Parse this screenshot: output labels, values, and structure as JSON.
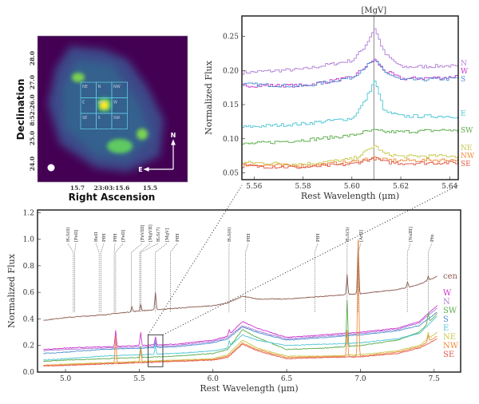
{
  "image_panel": {
    "xlabel": "Right Ascension",
    "ylabel": "Declination",
    "xticks": [
      "15.7",
      "23:03:15.6",
      "15.5"
    ],
    "yticks": [
      "28.0",
      "27.0",
      "8:52:26.0",
      "25.0",
      "24.0"
    ],
    "regions": [
      [
        "NE",
        "N",
        "NW"
      ],
      [
        "E",
        "cen",
        "W"
      ],
      [
        "SE",
        "S",
        "SW"
      ]
    ],
    "compass": {
      "north": "N",
      "east": "E"
    },
    "box_color": "#5ec8e0",
    "colormap": "viridis"
  },
  "chart_data": [
    {
      "type": "line",
      "title": "[MgV]",
      "xlabel": "Rest Wavelength (μm)",
      "ylabel": "Normalized Flux",
      "xlim": [
        5.555,
        5.6435
      ],
      "ylim": [
        0.04,
        0.28
      ],
      "xticks": [
        "5.56",
        "5.58",
        "5.60",
        "5.62",
        "5.64"
      ],
      "yticks": [
        "0.05",
        "0.10",
        "0.15",
        "0.20",
        "0.25"
      ],
      "marker_line": 5.609,
      "x": [
        5.555,
        5.58,
        5.6,
        5.605,
        5.609,
        5.613,
        5.62,
        5.64,
        5.6435
      ],
      "series": [
        {
          "name": "N",
          "color": "#b07fd6",
          "values": [
            0.197,
            0.202,
            0.215,
            0.235,
            0.262,
            0.225,
            0.205,
            0.207,
            0.204
          ]
        },
        {
          "name": "W",
          "color": "#cc33cc",
          "values": [
            0.178,
            0.178,
            0.19,
            0.205,
            0.216,
            0.2,
            0.188,
            0.19,
            0.193
          ]
        },
        {
          "name": "S",
          "color": "#4f8fd0",
          "values": [
            0.18,
            0.177,
            0.19,
            0.205,
            0.215,
            0.198,
            0.186,
            0.188,
            0.189
          ]
        },
        {
          "name": "E",
          "color": "#4fc6d6",
          "values": [
            0.117,
            0.122,
            0.13,
            0.155,
            0.185,
            0.14,
            0.133,
            0.133,
            0.132
          ]
        },
        {
          "name": "SW",
          "color": "#5aad4a",
          "values": [
            0.092,
            0.098,
            0.105,
            0.11,
            0.112,
            0.11,
            0.11,
            0.113,
            0.11
          ]
        },
        {
          "name": "NE",
          "color": "#c8c850",
          "values": [
            0.065,
            0.063,
            0.07,
            0.08,
            0.09,
            0.078,
            0.074,
            0.075,
            0.074
          ]
        },
        {
          "name": "NW",
          "color": "#f08a3c",
          "values": [
            0.062,
            0.06,
            0.066,
            0.07,
            0.072,
            0.069,
            0.068,
            0.069,
            0.069
          ]
        },
        {
          "name": "SE",
          "color": "#e05a4a",
          "values": [
            0.06,
            0.058,
            0.063,
            0.068,
            0.071,
            0.066,
            0.064,
            0.065,
            0.065
          ]
        }
      ]
    },
    {
      "type": "line",
      "xlabel": "Rest Wavelength (μm)",
      "ylabel": "Normalized Flux",
      "xlim": [
        4.81,
        7.68
      ],
      "ylim": [
        0,
        1.22
      ],
      "xticks": [
        "5.0",
        "5.5",
        "6.0",
        "6.5",
        "7.0",
        "7.5"
      ],
      "yticks": [
        "0.0",
        "0.2",
        "0.4",
        "0.6",
        "0.8",
        "1.0",
        "1.2"
      ],
      "zoom_box": {
        "xlim": [
          5.56,
          5.66
        ],
        "ylim": [
          0.04,
          0.28
        ]
      },
      "line_ids": [
        [
          "H₂S(8)",
          5.053
        ],
        [
          "[FeII]",
          5.062
        ],
        [
          "HeII",
          5.228
        ],
        [
          "PfH",
          5.24
        ],
        [
          "PfH",
          5.33
        ],
        [
          "[FeII]",
          5.34
        ],
        [
          "[FeVIII]",
          5.447
        ],
        [
          "[MgVII]",
          5.503
        ],
        [
          "H₂S(7)",
          5.511
        ],
        [
          "[MgV]",
          5.609
        ],
        [
          "PfH",
          5.711
        ],
        [
          "H₂S(6)",
          6.109
        ],
        [
          "PfH",
          6.22
        ],
        [
          "PfH",
          6.69
        ],
        [
          "H₂S(5)",
          6.91
        ],
        [
          "[ArII]",
          6.985
        ],
        [
          "[NaIII]",
          7.318
        ],
        [
          "Pfα",
          7.46
        ]
      ],
      "x": [
        4.85,
        5.0,
        5.25,
        5.5,
        5.75,
        6.0,
        6.1,
        6.2,
        6.3,
        6.5,
        6.75,
        7.0,
        7.25,
        7.4,
        7.52
      ],
      "series": [
        {
          "name": "cen",
          "color": "#8c5a50",
          "values": [
            0.39,
            0.41,
            0.43,
            0.46,
            0.48,
            0.5,
            0.52,
            0.57,
            0.55,
            0.55,
            0.57,
            0.59,
            0.62,
            0.66,
            0.72
          ],
          "lines": [
            [
              5.45,
              0.04
            ],
            [
              5.51,
              0.05
            ],
            [
              5.61,
              0.13
            ],
            [
              6.91,
              0.15
            ],
            [
              6.985,
              0.4
            ],
            [
              7.32,
              0.04
            ],
            [
              7.46,
              0.03
            ]
          ]
        },
        {
          "name": "W",
          "color": "#cc33cc",
          "values": [
            0.17,
            0.18,
            0.19,
            0.2,
            0.21,
            0.24,
            0.27,
            0.38,
            0.33,
            0.26,
            0.28,
            0.3,
            0.33,
            0.38,
            0.5
          ],
          "lines": [
            [
              5.34,
              0.12
            ],
            [
              5.51,
              0.1
            ],
            [
              5.61,
              0.06
            ],
            [
              6.11,
              0.04
            ]
          ]
        },
        {
          "name": "N",
          "color": "#b07fd6",
          "values": [
            0.16,
            0.17,
            0.18,
            0.19,
            0.2,
            0.23,
            0.26,
            0.35,
            0.31,
            0.25,
            0.27,
            0.29,
            0.32,
            0.37,
            0.48
          ],
          "lines": [
            [
              5.61,
              0.05
            ]
          ]
        },
        {
          "name": "SW",
          "color": "#5aad4a",
          "values": [
            0.08,
            0.09,
            0.1,
            0.11,
            0.12,
            0.14,
            0.17,
            0.32,
            0.26,
            0.17,
            0.18,
            0.2,
            0.24,
            0.3,
            0.44
          ],
          "lines": [
            [
              5.51,
              0.08
            ],
            [
              6.91,
              0.35
            ],
            [
              7.46,
              0.08
            ]
          ]
        },
        {
          "name": "S",
          "color": "#4f8fd0",
          "values": [
            0.14,
            0.15,
            0.17,
            0.18,
            0.19,
            0.22,
            0.25,
            0.34,
            0.3,
            0.24,
            0.26,
            0.28,
            0.31,
            0.35,
            0.45
          ],
          "lines": [
            [
              5.61,
              0.04
            ]
          ]
        },
        {
          "name": "E",
          "color": "#4fc6d6",
          "values": [
            0.09,
            0.1,
            0.12,
            0.13,
            0.14,
            0.16,
            0.18,
            0.28,
            0.24,
            0.2,
            0.21,
            0.22,
            0.25,
            0.29,
            0.42
          ],
          "lines": [
            [
              5.61,
              0.07
            ],
            [
              6.11,
              0.05
            ]
          ]
        },
        {
          "name": "NE",
          "color": "#c8c850",
          "values": [
            0.05,
            0.06,
            0.07,
            0.08,
            0.09,
            0.1,
            0.13,
            0.24,
            0.18,
            0.12,
            0.12,
            0.13,
            0.16,
            0.2,
            0.3
          ],
          "lines": [
            [
              7.46,
              0.05
            ]
          ]
        },
        {
          "name": "NW",
          "color": "#f08a3c",
          "values": [
            0.05,
            0.055,
            0.065,
            0.075,
            0.085,
            0.095,
            0.12,
            0.22,
            0.17,
            0.11,
            0.115,
            0.12,
            0.15,
            0.19,
            0.27
          ],
          "lines": [
            [
              5.34,
              0.2
            ],
            [
              5.51,
              0.1
            ],
            [
              6.985,
              0.88
            ],
            [
              6.91,
              0.2
            ],
            [
              7.46,
              0.05
            ]
          ]
        },
        {
          "name": "SE",
          "color": "#e05a4a",
          "values": [
            0.045,
            0.05,
            0.06,
            0.07,
            0.08,
            0.09,
            0.11,
            0.21,
            0.16,
            0.1,
            0.11,
            0.115,
            0.14,
            0.18,
            0.25
          ],
          "lines": []
        }
      ]
    }
  ]
}
